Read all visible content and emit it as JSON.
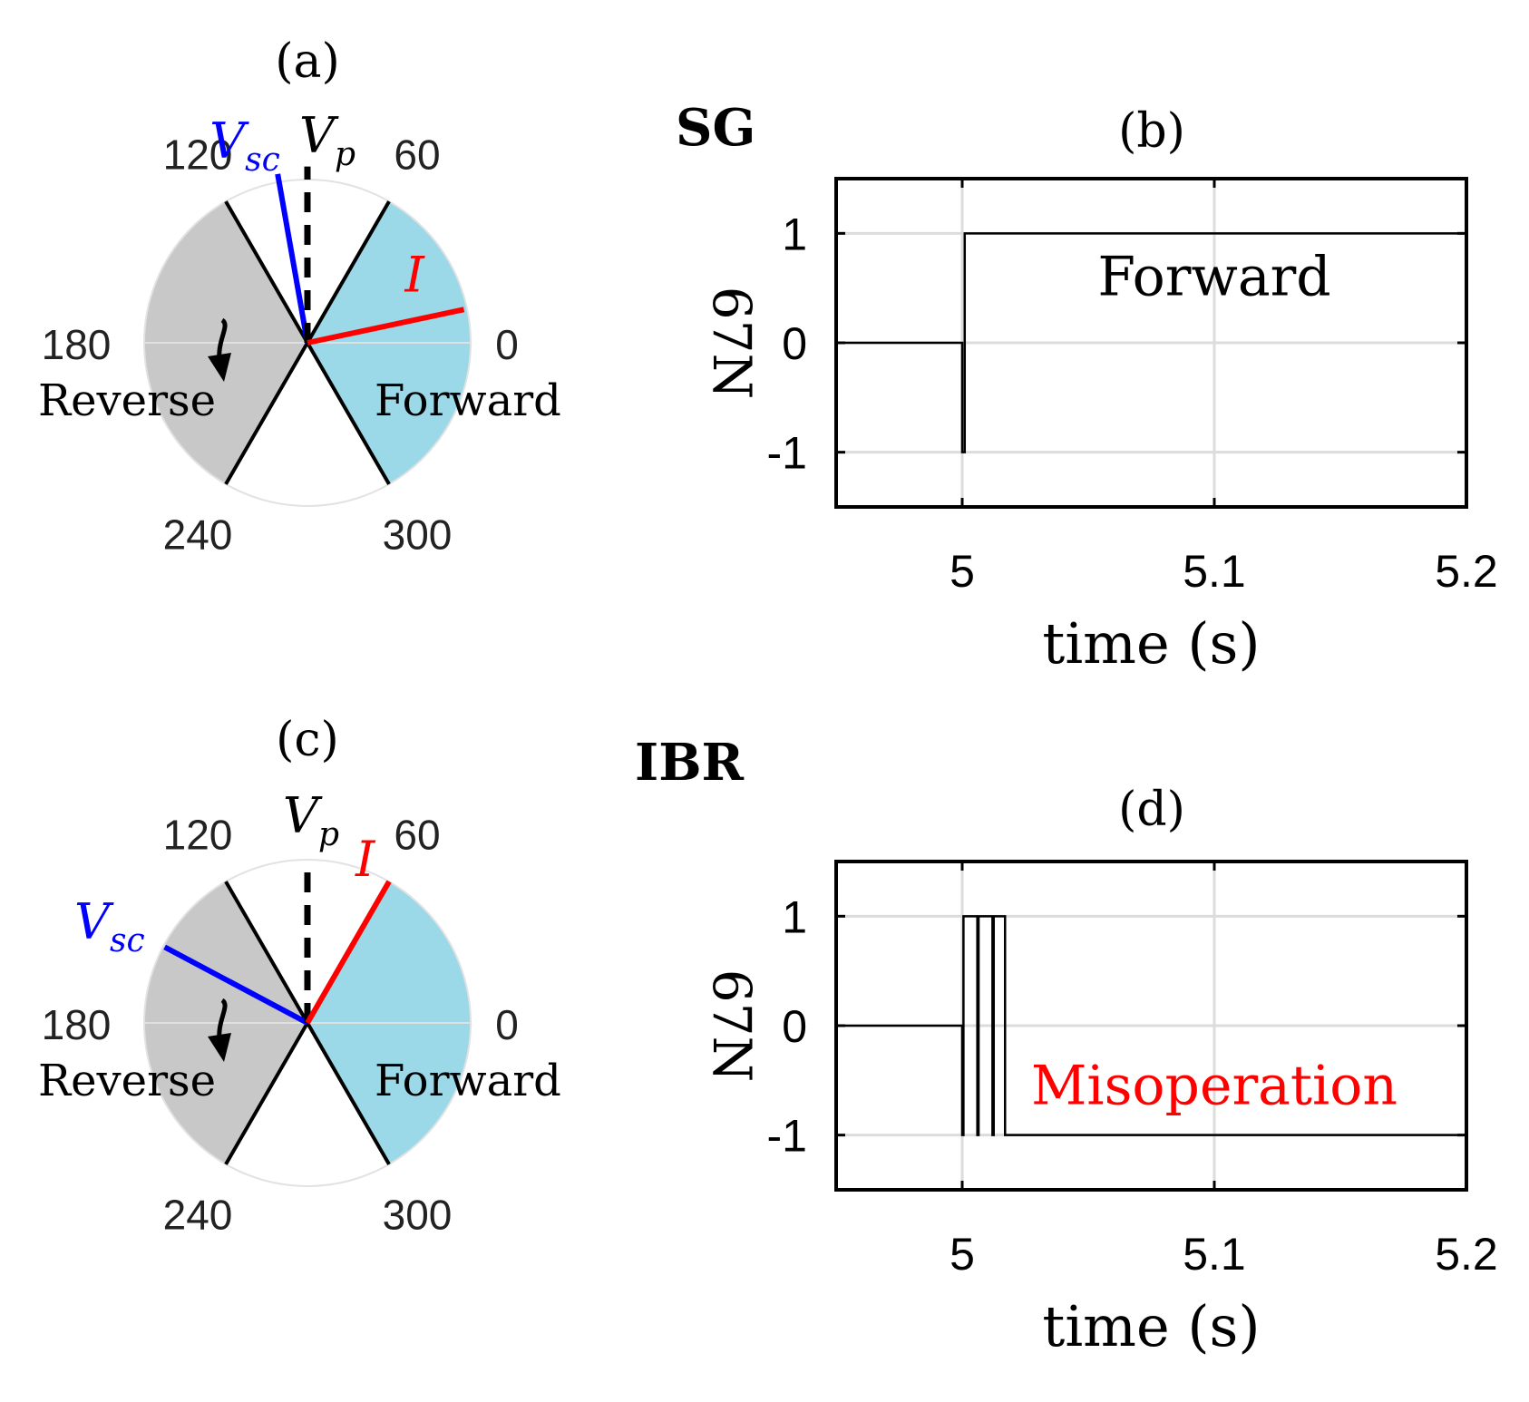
{
  "chart_data": [
    {
      "id": "a",
      "type": "polar",
      "title": "(a)",
      "angle_labels": [
        "0",
        "60",
        "120",
        "180",
        "240",
        "300"
      ],
      "angle_values": [
        0,
        60,
        120,
        180,
        240,
        300
      ],
      "zones": [
        {
          "name": "Forward",
          "label": "Forward",
          "from_deg": -60,
          "to_deg": 60,
          "color": "#9bd8e8"
        },
        {
          "name": "Reverse",
          "label": "Reverse",
          "from_deg": 120,
          "to_deg": 240,
          "color": "#c8c8c8"
        }
      ],
      "phasors": [
        {
          "name": "V_sc",
          "label": "V",
          "subscript": "sc",
          "angle_deg": 100,
          "magnitude": 1.05,
          "color": "#0000ff"
        },
        {
          "name": "V_p",
          "label": "V",
          "subscript": "p",
          "angle_deg": 90,
          "magnitude": 1.08,
          "color": "#000000",
          "dashed": true
        },
        {
          "name": "I",
          "label": "I",
          "subscript": "",
          "angle_deg": 12,
          "magnitude": 0.98,
          "color": "#ff0000"
        }
      ]
    },
    {
      "id": "b",
      "type": "line",
      "title": "(b)",
      "group_label": "SG",
      "xlabel": "time (s)",
      "ylabel": "67N",
      "xlim": [
        4.95,
        5.2
      ],
      "ylim": [
        -1.5,
        1.5
      ],
      "xticks": [
        5,
        5.1,
        5.2
      ],
      "xtick_labels": [
        "5",
        "5.1",
        "5.2"
      ],
      "yticks": [
        -1,
        0,
        1
      ],
      "ytick_labels": [
        "-1",
        "0",
        "1"
      ],
      "grid": true,
      "annotation": {
        "text": "Forward",
        "x": 5.1,
        "y": 0.6,
        "color": "#000000"
      },
      "series": [
        {
          "name": "67N",
          "x": [
            4.95,
            5.0,
            5.0,
            5.001,
            5.001,
            5.2
          ],
          "y": [
            0,
            0,
            -1,
            -1,
            1,
            1
          ]
        }
      ]
    },
    {
      "id": "c",
      "type": "polar",
      "title": "(c)",
      "angle_labels": [
        "0",
        "60",
        "120",
        "180",
        "240",
        "300"
      ],
      "angle_values": [
        0,
        60,
        120,
        180,
        240,
        300
      ],
      "zones": [
        {
          "name": "Forward",
          "label": "Forward",
          "from_deg": -60,
          "to_deg": 60,
          "color": "#9bd8e8"
        },
        {
          "name": "Reverse",
          "label": "Reverse",
          "from_deg": 120,
          "to_deg": 240,
          "color": "#c8c8c8"
        }
      ],
      "phasors": [
        {
          "name": "V_sc",
          "label": "V",
          "subscript": "sc",
          "angle_deg": 152,
          "magnitude": 0.99,
          "color": "#0000ff"
        },
        {
          "name": "V_p",
          "label": "V",
          "subscript": "p",
          "angle_deg": 90,
          "magnitude": 1.0,
          "color": "#000000",
          "dashed": true
        },
        {
          "name": "I",
          "label": "I",
          "subscript": "",
          "angle_deg": 60,
          "magnitude": 1.0,
          "color": "#ff0000"
        }
      ]
    },
    {
      "id": "d",
      "type": "line",
      "title": "(d)",
      "group_label": "IBR",
      "xlabel": "time (s)",
      "ylabel": "67N",
      "xlim": [
        4.95,
        5.2
      ],
      "ylim": [
        -1.5,
        1.5
      ],
      "xticks": [
        5,
        5.1,
        5.2
      ],
      "xtick_labels": [
        "5",
        "5.1",
        "5.2"
      ],
      "yticks": [
        -1,
        0,
        1
      ],
      "ytick_labels": [
        "-1",
        "0",
        "1"
      ],
      "grid": true,
      "annotation": {
        "text": "Misoperation",
        "x": 5.1,
        "y": -0.55,
        "color": "#ff0000"
      },
      "series": [
        {
          "name": "67N",
          "x": [
            4.95,
            5.0,
            5.0,
            5.0005,
            5.0005,
            5.006,
            5.006,
            5.0065,
            5.0065,
            5.012,
            5.012,
            5.0125,
            5.0125,
            5.017,
            5.017,
            5.0175,
            5.0175,
            5.2
          ],
          "y": [
            0,
            0,
            -1,
            -1,
            1,
            1,
            -1,
            -1,
            1,
            1,
            -1,
            -1,
            1,
            1,
            -1,
            -1,
            -1,
            -1
          ]
        }
      ]
    }
  ]
}
